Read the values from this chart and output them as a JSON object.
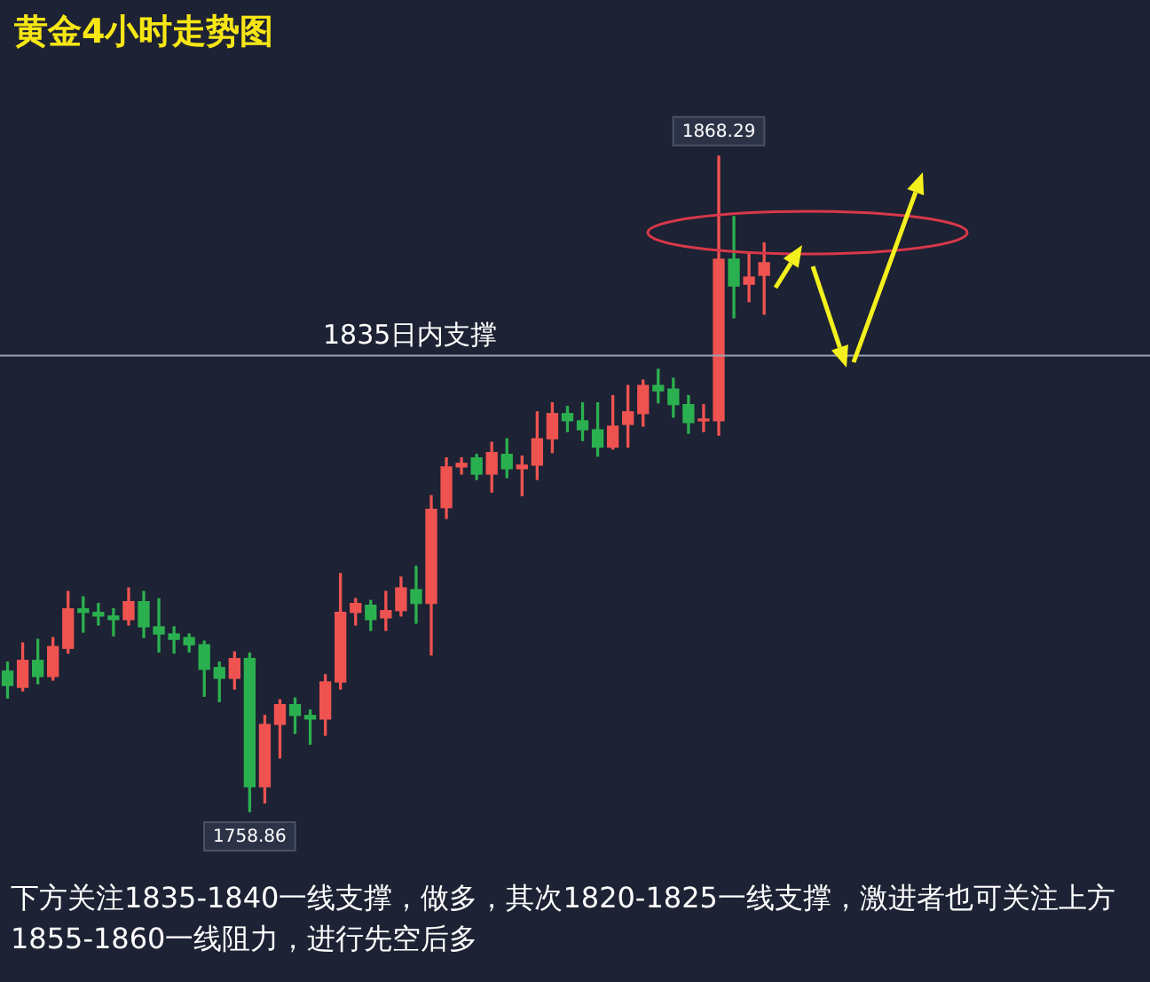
{
  "chart_data": {
    "type": "candlestick",
    "title": "黄金4小时走势图",
    "categories": [
      null,
      null,
      null,
      null,
      null,
      null,
      null,
      null,
      null,
      null,
      null,
      null,
      null,
      null,
      null,
      null,
      null,
      null,
      null,
      null,
      null,
      null,
      null,
      null,
      null,
      null,
      null,
      null,
      null,
      null,
      null,
      null,
      null,
      null,
      null,
      null,
      null,
      null,
      null,
      null,
      null,
      null,
      null,
      null,
      null,
      null,
      null,
      null,
      null,
      null,
      null,
      null,
      null,
      null,
      null,
      null,
      null,
      null,
      null,
      null,
      null,
      null,
      null,
      null,
      null,
      null,
      null,
      null,
      null,
      null,
      null,
      null,
      null,
      null,
      null,
      null
    ],
    "ohlc": [
      [
        1782.3,
        1783.8,
        1777.8,
        1779.9
      ],
      [
        1779.6,
        1787.0,
        1779.0,
        1784.1
      ],
      [
        1784.1,
        1787.6,
        1780.2,
        1781.4
      ],
      [
        1781.4,
        1787.9,
        1780.8,
        1786.4
      ],
      [
        1786.1,
        1795.6,
        1785.3,
        1792.7
      ],
      [
        1792.7,
        1794.7,
        1788.8,
        1792.1
      ],
      [
        1792.1,
        1793.6,
        1790.0,
        1791.5
      ],
      [
        1791.5,
        1792.7,
        1788.2,
        1790.9
      ],
      [
        1790.9,
        1796.2,
        1790.0,
        1793.9
      ],
      [
        1793.9,
        1795.6,
        1787.9,
        1789.7
      ],
      [
        1789.7,
        1794.4,
        1785.5,
        1788.5
      ],
      [
        1788.5,
        1789.7,
        1785.3,
        1787.6
      ],
      [
        1787.9,
        1788.5,
        1785.5,
        1786.7
      ],
      [
        1786.7,
        1787.3,
        1778.1,
        1782.6
      ],
      [
        1782.9,
        1783.8,
        1777.2,
        1781.1
      ],
      [
        1781.1,
        1785.5,
        1779.3,
        1784.4
      ],
      [
        1784.4,
        1785.3,
        1758.86,
        1763.0
      ],
      [
        1763.0,
        1774.9,
        1760.3,
        1773.4
      ],
      [
        1773.4,
        1777.5,
        1767.8,
        1776.7
      ],
      [
        1776.7,
        1777.8,
        1771.9,
        1774.9
      ],
      [
        1774.9,
        1775.8,
        1770.1,
        1774.3
      ],
      [
        1774.3,
        1781.7,
        1771.6,
        1780.5
      ],
      [
        1780.5,
        1798.6,
        1779.3,
        1792.1
      ],
      [
        1792.1,
        1794.4,
        1790.0,
        1793.6
      ],
      [
        1793.3,
        1794.1,
        1789.1,
        1790.9
      ],
      [
        1791.2,
        1795.6,
        1789.1,
        1792.4
      ],
      [
        1792.4,
        1798.0,
        1791.5,
        1796.2
      ],
      [
        1795.9,
        1799.8,
        1790.3,
        1793.6
      ],
      [
        1793.6,
        1811.6,
        1785.0,
        1809.3
      ],
      [
        1809.6,
        1817.9,
        1807.8,
        1816.4
      ],
      [
        1816.4,
        1817.9,
        1815.2,
        1817.0
      ],
      [
        1817.9,
        1818.5,
        1814.3,
        1815.2
      ],
      [
        1815.2,
        1820.5,
        1812.2,
        1818.8
      ],
      [
        1818.5,
        1821.1,
        1814.6,
        1816.1
      ],
      [
        1816.1,
        1818.2,
        1811.6,
        1816.7
      ],
      [
        1816.7,
        1825.6,
        1814.3,
        1821.1
      ],
      [
        1821.1,
        1827.1,
        1818.8,
        1825.3
      ],
      [
        1825.3,
        1826.5,
        1822.3,
        1824.1
      ],
      [
        1824.1,
        1827.1,
        1820.8,
        1822.6
      ],
      [
        1822.6,
        1827.1,
        1818.2,
        1819.7
      ],
      [
        1819.7,
        1828.3,
        1819.4,
        1823.2
      ],
      [
        1823.5,
        1830.0,
        1819.7,
        1825.6
      ],
      [
        1825.3,
        1830.9,
        1823.2,
        1830.0
      ],
      [
        1830.0,
        1832.7,
        1827.1,
        1829.1
      ],
      [
        1829.4,
        1831.2,
        1824.7,
        1826.8
      ],
      [
        1826.8,
        1828.3,
        1822.0,
        1823.8
      ],
      [
        1824.1,
        1826.8,
        1822.3,
        1824.4
      ],
      [
        1824.1,
        1868.29,
        1821.7,
        1851.1
      ],
      [
        1851.1,
        1858.2,
        1841.3,
        1846.6
      ],
      [
        1846.9,
        1852.3,
        1844.0,
        1848.1
      ],
      [
        1848.4,
        1853.8,
        1841.9,
        1850.5
      ],
      null,
      null,
      null,
      null,
      null,
      null,
      null,
      null,
      null,
      null,
      null,
      null,
      null,
      null,
      null,
      null,
      null,
      null,
      null,
      null,
      null,
      null,
      null,
      null,
      null
    ],
    "ref_lines": [
      {
        "axis": "y",
        "value": 1835,
        "label": "1835日内支撑"
      }
    ],
    "annotations": [
      {
        "text": "1868.29",
        "y": 1868.29
      },
      {
        "text": "1758.86",
        "y": 1758.86
      },
      "下方关注1835-1840一线支撑，做多，其次1820-1825一线支撑，激进者也可关注上方1855-1860一线阻力，进行先空后多"
    ],
    "tick_labels": false
  }
}
